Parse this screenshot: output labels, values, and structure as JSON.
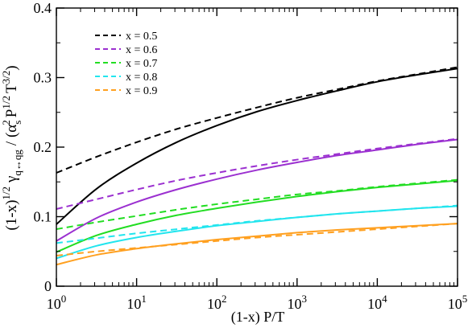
{
  "chart_data": {
    "type": "line",
    "xscale": "log",
    "xlim": [
      1,
      100000
    ],
    "ylim": [
      0,
      0.4
    ],
    "xticks": [
      1,
      10,
      100,
      1000,
      10000,
      100000
    ],
    "xtick_labels": [
      {
        "base": "10",
        "exp": "0"
      },
      {
        "base": "10",
        "exp": "1"
      },
      {
        "base": "10",
        "exp": "2"
      },
      {
        "base": "10",
        "exp": "3"
      },
      {
        "base": "10",
        "exp": "4"
      },
      {
        "base": "10",
        "exp": "5"
      }
    ],
    "yticks": [
      0,
      0.1,
      0.2,
      0.3,
      0.4
    ],
    "ytick_labels": [
      "0",
      "0.1",
      "0.2",
      "0.3",
      "0.4"
    ],
    "xlabel": "(1-x) P/T",
    "ylabel_parts": {
      "a": "(1-x)",
      "a_sup": "1/2",
      "gamma": "γ",
      "gamma_sub": "q↔qg",
      "b": "/ (α",
      "alpha_sub": "s",
      "alpha_sup": "2",
      "c": "P",
      "p_sup": "1/2",
      "d": "T",
      "t_sup": "3/2",
      "e": ")"
    },
    "legend": {
      "position": "top-left",
      "entries": [
        "x = 0.5",
        "x = 0.6",
        "x = 0.7",
        "x = 0.8",
        "x = 0.9"
      ],
      "colors": [
        "#000000",
        "#9b30d0",
        "#22dd22",
        "#22e5ee",
        "#ffa020"
      ]
    },
    "x": [
      1,
      3.162,
      10,
      31.62,
      100,
      316.2,
      1000,
      3162,
      10000,
      31620,
      100000
    ],
    "series": [
      {
        "name": "x = 0.5",
        "style": "solid",
        "color": "#000000",
        "values": [
          0.089,
          0.14,
          0.177,
          0.207,
          0.231,
          0.251,
          0.267,
          0.281,
          0.294,
          0.304,
          0.313
        ]
      },
      {
        "name": "x = 0.5",
        "style": "dashed",
        "color": "#000000",
        "values": [
          0.163,
          0.186,
          0.207,
          0.226,
          0.242,
          0.257,
          0.271,
          0.283,
          0.295,
          0.305,
          0.315
        ]
      },
      {
        "name": "x = 0.6",
        "style": "solid",
        "color": "#9b30d0",
        "values": [
          0.065,
          0.098,
          0.121,
          0.139,
          0.154,
          0.167,
          0.178,
          0.188,
          0.196,
          0.204,
          0.211
        ]
      },
      {
        "name": "x = 0.6",
        "style": "dashed",
        "color": "#9b30d0",
        "values": [
          0.111,
          0.125,
          0.139,
          0.152,
          0.163,
          0.173,
          0.182,
          0.19,
          0.198,
          0.205,
          0.212
        ]
      },
      {
        "name": "x = 0.7",
        "style": "solid",
        "color": "#22dd22",
        "values": [
          0.049,
          0.073,
          0.089,
          0.102,
          0.112,
          0.121,
          0.129,
          0.136,
          0.142,
          0.147,
          0.152
        ]
      },
      {
        "name": "x = 0.7",
        "style": "dashed",
        "color": "#22dd22",
        "values": [
          0.082,
          0.092,
          0.101,
          0.11,
          0.118,
          0.125,
          0.132,
          0.137,
          0.143,
          0.148,
          0.153
        ]
      },
      {
        "name": "x = 0.8",
        "style": "solid",
        "color": "#22e5ee",
        "values": [
          0.04,
          0.058,
          0.07,
          0.079,
          0.087,
          0.093,
          0.099,
          0.104,
          0.108,
          0.112,
          0.115
        ]
      },
      {
        "name": "x = 0.8",
        "style": "dashed",
        "color": "#22e5ee",
        "values": [
          0.062,
          0.069,
          0.076,
          0.082,
          0.088,
          0.094,
          0.099,
          0.104,
          0.108,
          0.112,
          0.116
        ]
      },
      {
        "name": "x = 0.9",
        "style": "solid",
        "color": "#ffa020",
        "values": [
          0.031,
          0.045,
          0.054,
          0.061,
          0.067,
          0.072,
          0.077,
          0.081,
          0.084,
          0.087,
          0.09
        ]
      },
      {
        "name": "x = 0.9",
        "style": "dashed",
        "color": "#ffa020",
        "values": [
          0.044,
          0.05,
          0.055,
          0.06,
          0.065,
          0.07,
          0.074,
          0.078,
          0.082,
          0.086,
          0.09
        ]
      }
    ]
  }
}
